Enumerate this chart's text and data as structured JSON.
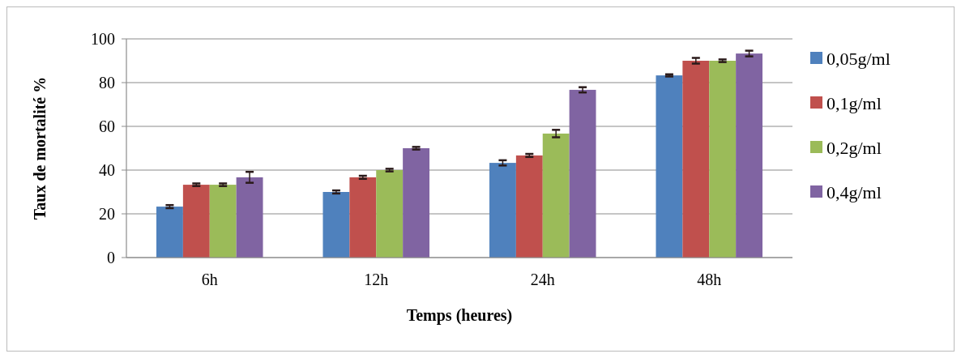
{
  "chart_data": {
    "type": "bar",
    "xlabel": "Temps (heures)",
    "ylabel": "Taux de mortalité %",
    "categories": [
      "6h",
      "12h",
      "24h",
      "48h"
    ],
    "series": [
      {
        "name": "0,05g/ml",
        "color": "#4f81bd",
        "values": [
          23.3,
          30,
          43.3,
          83.3
        ],
        "errors": [
          0.7,
          0.7,
          1.2,
          0.5
        ]
      },
      {
        "name": "0,1g/ml",
        "color": "#c0504d",
        "values": [
          33.3,
          36.7,
          46.7,
          90
        ],
        "errors": [
          0.6,
          0.7,
          0.7,
          1.3
        ]
      },
      {
        "name": "0,2g/ml",
        "color": "#9bbb59",
        "values": [
          33.3,
          40,
          56.7,
          90
        ],
        "errors": [
          0.6,
          0.6,
          1.7,
          0.6
        ]
      },
      {
        "name": "0,4g/ml",
        "color": "#8064a2",
        "values": [
          36.7,
          50,
          76.7,
          93.3
        ],
        "errors": [
          2.5,
          0.6,
          1.2,
          1.3
        ]
      }
    ],
    "ylim": [
      0,
      100
    ],
    "yticks": [
      0,
      20,
      40,
      60,
      80,
      100
    ],
    "grid": "y",
    "legend": "right"
  }
}
